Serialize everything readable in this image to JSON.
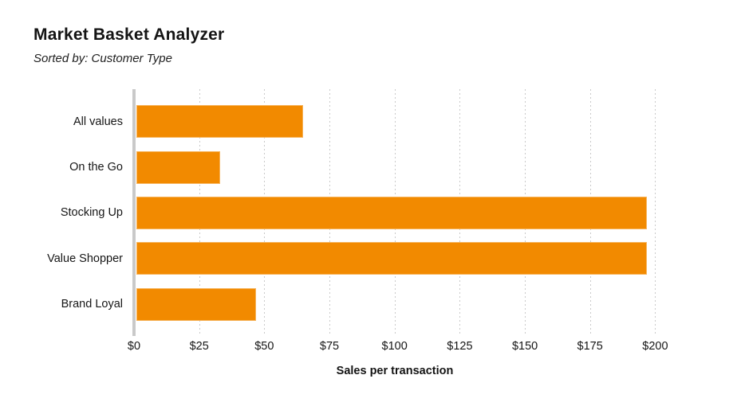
{
  "header": {
    "title": "Market Basket Analyzer",
    "subtitle": "Sorted by: Customer Type"
  },
  "chart_data": {
    "type": "bar",
    "orientation": "horizontal",
    "title": "Market Basket Analyzer",
    "subtitle": "Sorted by: Customer Type",
    "categories": [
      "All values",
      "On the Go",
      "Stocking Up",
      "Value Shopper",
      "Brand Loyal"
    ],
    "values": [
      64,
      32,
      196,
      196,
      46
    ],
    "xlabel": "Sales per transaction",
    "xlim": [
      0,
      200
    ],
    "tick_interval": 25,
    "tick_labels": [
      "$0",
      "$25",
      "$50",
      "$75",
      "$100",
      "$125",
      "$150",
      "$175",
      "$200"
    ],
    "grid": "vertical-dotted",
    "legend": "none",
    "bar_color": "#F28A00",
    "bar_edge_color": "#F6B35A",
    "axis_line_color": "#C9C9C9",
    "gridline_color": "#C9C9C9",
    "text_color": "#1A1A1A"
  }
}
